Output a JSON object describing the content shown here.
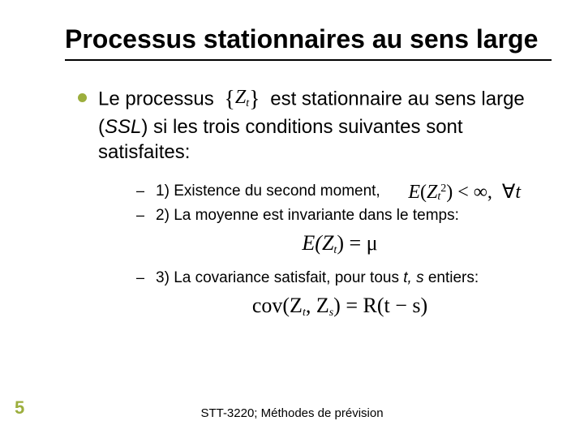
{
  "colors": {
    "bullet": "#9cae3d",
    "slide_number": "#9cae3d"
  },
  "title": "Processus stationnaires au sens large",
  "main": {
    "pre": "Le processus",
    "math_var": "Z",
    "math_sub": "t",
    "post": "est stationnaire au sens large (",
    "ssl": "SSL",
    "tail": ") si les trois conditions suivantes sont satisfaites:"
  },
  "items": {
    "one": {
      "text": "1) Existence du second moment,",
      "formula_html": "E(Z<sub>t</sub><sup>2</sup>) &lt; &infin;, &nbsp;&forall;t"
    },
    "two": {
      "text": "2) La moyenne est invariante dans le temps:",
      "formula": "E(Z",
      "formula_sub": "t",
      "formula_tail": ") = μ"
    },
    "three": {
      "pre": "3) La covariance satisfait, pour tous ",
      "vars": "t, s",
      "post": " entiers:",
      "formula_pre": "cov(Z",
      "formula_s1": "t",
      "formula_mid": ", Z",
      "formula_s2": "s",
      "formula_eq": ") = R(t − s)"
    }
  },
  "slide_number": "5",
  "footer": "STT-3220; Méthodes de prévision"
}
